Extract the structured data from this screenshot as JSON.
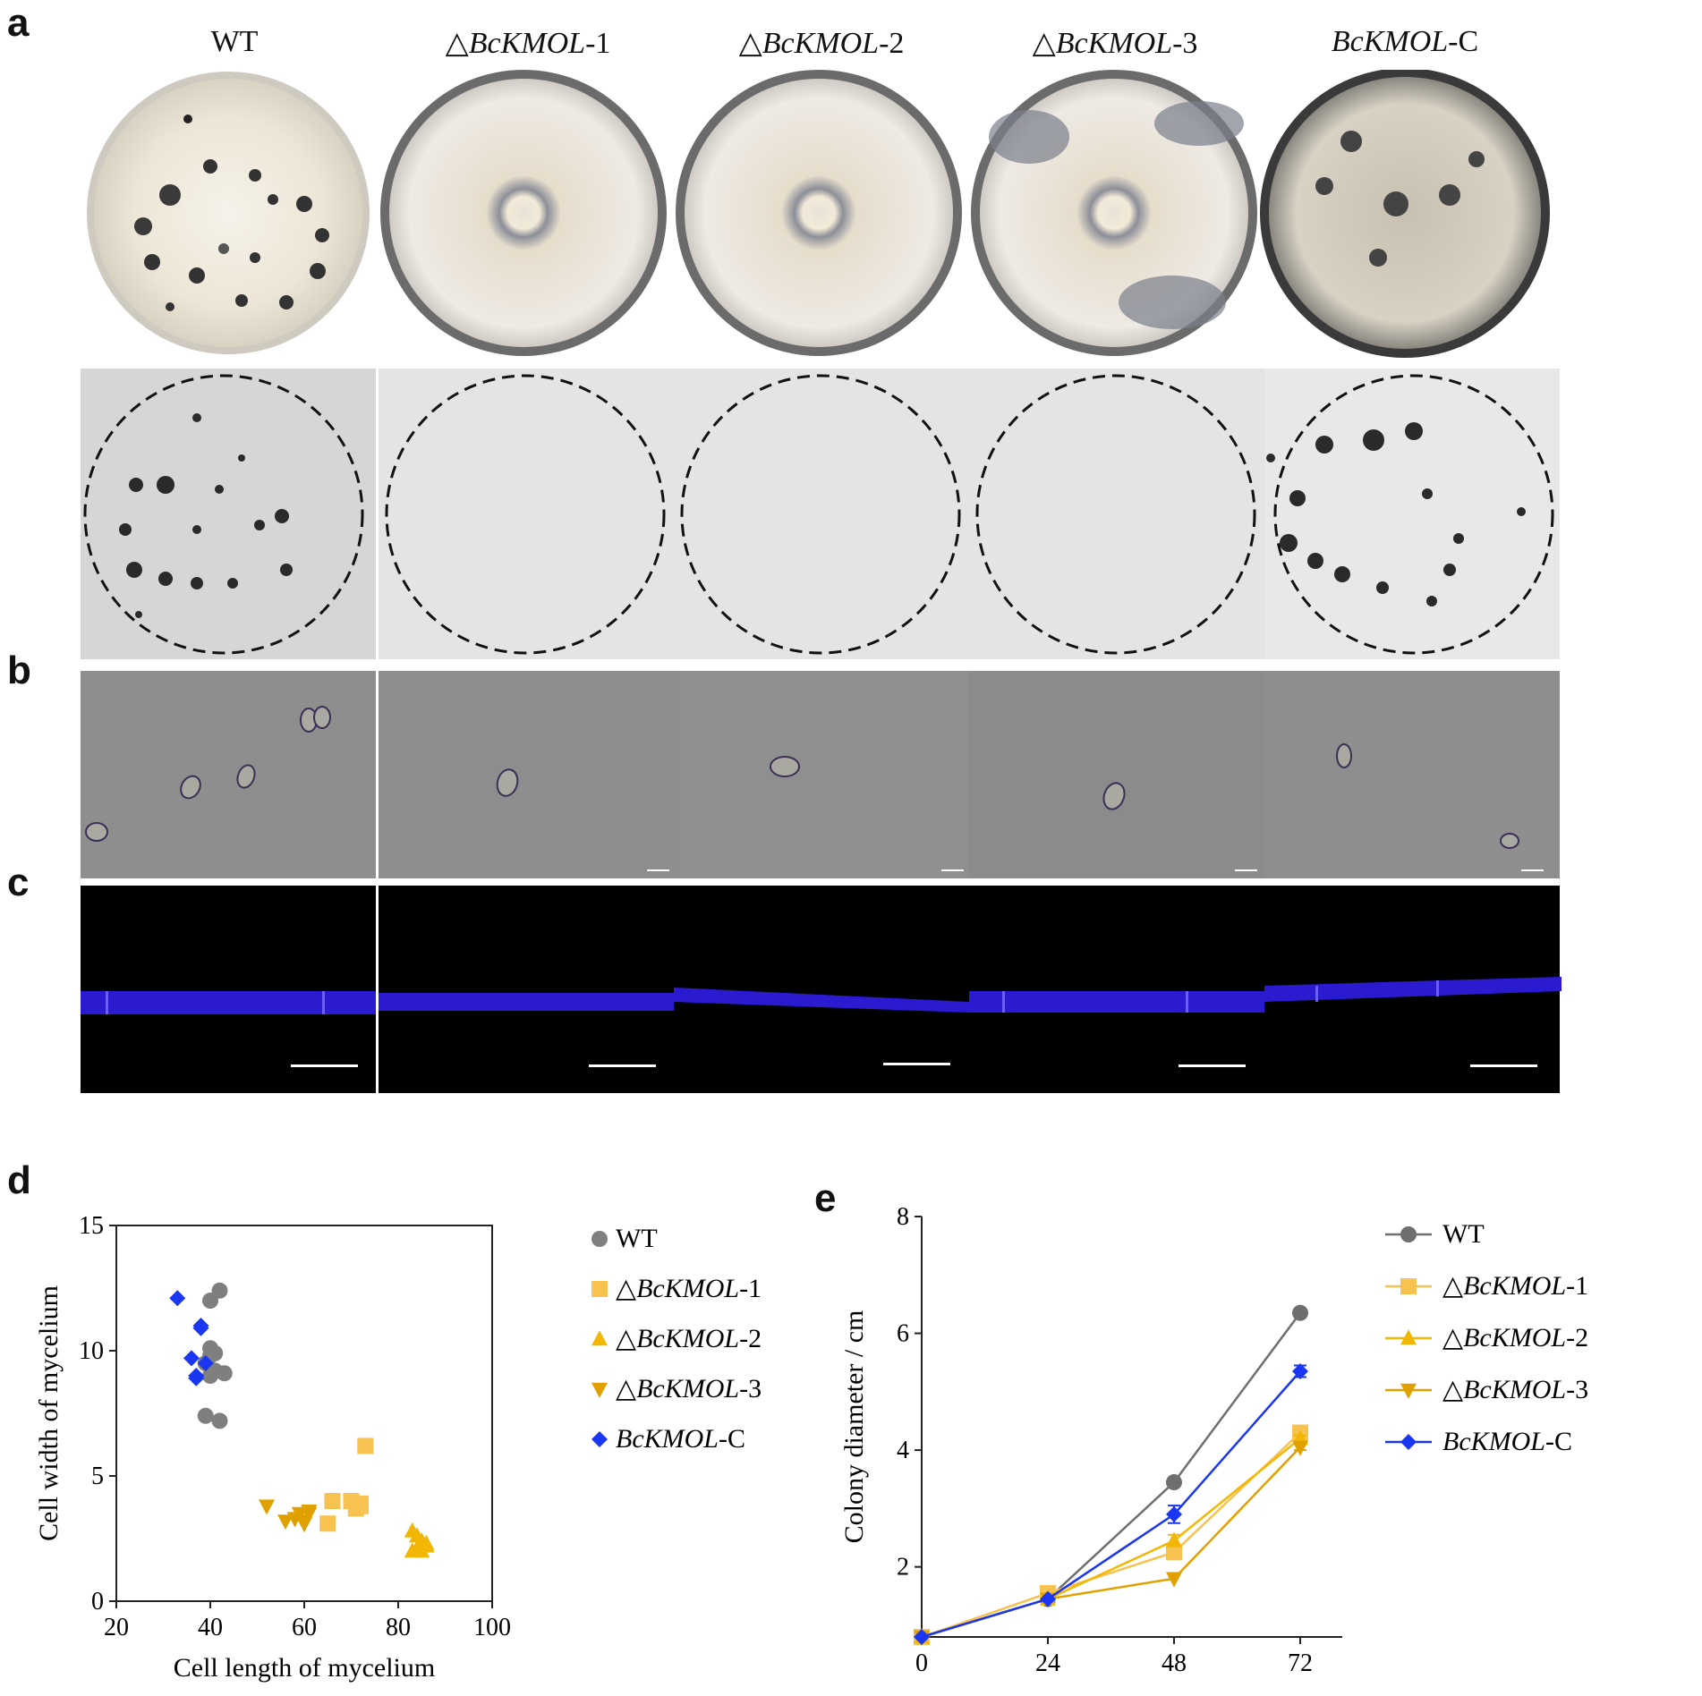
{
  "panels": {
    "a": "a",
    "b": "b",
    "c": "c",
    "d": "d",
    "e": "e"
  },
  "strains": [
    {
      "prefix": "",
      "gene": "",
      "suffix": "WT"
    },
    {
      "prefix": "△",
      "gene": "BcKMOL",
      "suffix": "-1"
    },
    {
      "prefix": "△",
      "gene": "BcKMOL",
      "suffix": "-2"
    },
    {
      "prefix": "△",
      "gene": "BcKMOL",
      "suffix": "-3"
    },
    {
      "prefix": "",
      "gene": "BcKMOL",
      "suffix": "-C"
    }
  ],
  "colors": {
    "WT": "#7f7f7f",
    "KMOL1": "#f7c24f",
    "KMOL2": "#f2b705",
    "KMOL3": "#e0a100",
    "KMOLC": "#1a36f0",
    "fluor": "#3a1fe0"
  },
  "chart_data": [
    {
      "type": "scatter",
      "xlabel": "Cell length of mycelium",
      "ylabel": "Cell width of mycelium",
      "xlim": [
        20,
        100
      ],
      "ylim": [
        0,
        15
      ],
      "xticks": [
        "20",
        "40",
        "60",
        "80",
        "100"
      ],
      "yticks": [
        "0",
        "5",
        "10",
        "15"
      ],
      "legend_position": "right",
      "series": [
        {
          "name": "WT",
          "marker": "circle",
          "color": "#7f7f7f",
          "x": [
            42,
            40,
            40,
            41,
            39,
            41,
            43,
            40,
            42,
            39,
            40
          ],
          "y": [
            12.4,
            12.0,
            10.1,
            9.9,
            9.5,
            9.2,
            9.1,
            9.0,
            7.2,
            7.4,
            9.8
          ]
        },
        {
          "name": "△BcKMOL-1",
          "marker": "square",
          "color": "#f7c24f",
          "x": [
            73,
            66,
            70,
            72,
            71,
            65,
            72
          ],
          "y": [
            6.2,
            4.0,
            4.0,
            3.9,
            3.7,
            3.1,
            3.8
          ]
        },
        {
          "name": "△BcKMOL-2",
          "marker": "triangle-up",
          "color": "#f2b705",
          "x": [
            83,
            84,
            85,
            86,
            84,
            83,
            85,
            86
          ],
          "y": [
            2.8,
            2.6,
            2.4,
            2.2,
            2.1,
            2.0,
            2.0,
            2.3
          ]
        },
        {
          "name": "△BcKMOL-3",
          "marker": "triangle-down",
          "color": "#e0a100",
          "x": [
            52,
            56,
            58,
            59,
            60,
            61,
            60,
            61
          ],
          "y": [
            3.8,
            3.2,
            3.3,
            3.5,
            3.1,
            3.5,
            3.2,
            3.6
          ]
        },
        {
          "name": "BcKMOL-C",
          "marker": "diamond",
          "color": "#1a36f0",
          "x": [
            33,
            38,
            38,
            36,
            39,
            37,
            37
          ],
          "y": [
            12.1,
            11.0,
            10.9,
            9.7,
            9.5,
            9.0,
            8.9
          ]
        }
      ]
    },
    {
      "type": "line",
      "xlabel": "",
      "ylabel": "Colony diameter / cm",
      "x": [
        0,
        24,
        48,
        72
      ],
      "xlim": [
        0,
        80
      ],
      "ylim": [
        0.8,
        8
      ],
      "xticks": [
        "0",
        "24",
        "48",
        "72"
      ],
      "yticks": [
        "2",
        "4",
        "6",
        "8"
      ],
      "legend_position": "right",
      "series": [
        {
          "name": "WT",
          "marker": "circle",
          "color": "#6e6e6e",
          "values": [
            0.8,
            1.45,
            3.45,
            6.35
          ],
          "err": [
            0,
            0,
            0,
            0
          ]
        },
        {
          "name": "△BcKMOL-1",
          "marker": "square",
          "color": "#f7c24f",
          "values": [
            0.8,
            1.55,
            2.25,
            4.3
          ],
          "err": [
            0,
            0,
            0,
            0.05
          ]
        },
        {
          "name": "△BcKMOL-2",
          "marker": "triangle-up",
          "color": "#f2b705",
          "values": [
            0.8,
            1.45,
            2.45,
            4.2
          ],
          "err": [
            0,
            0,
            0.1,
            0.05
          ]
        },
        {
          "name": "△BcKMOL-3",
          "marker": "triangle-down",
          "color": "#e0a100",
          "values": [
            0.8,
            1.45,
            1.8,
            4.05
          ],
          "err": [
            0,
            0,
            0,
            0.05
          ]
        },
        {
          "name": "BcKMOL-C",
          "marker": "diamond",
          "color": "#1a36f0",
          "values": [
            0.8,
            1.45,
            2.9,
            5.35
          ],
          "err": [
            0,
            0,
            0.15,
            0.1
          ]
        }
      ]
    }
  ]
}
